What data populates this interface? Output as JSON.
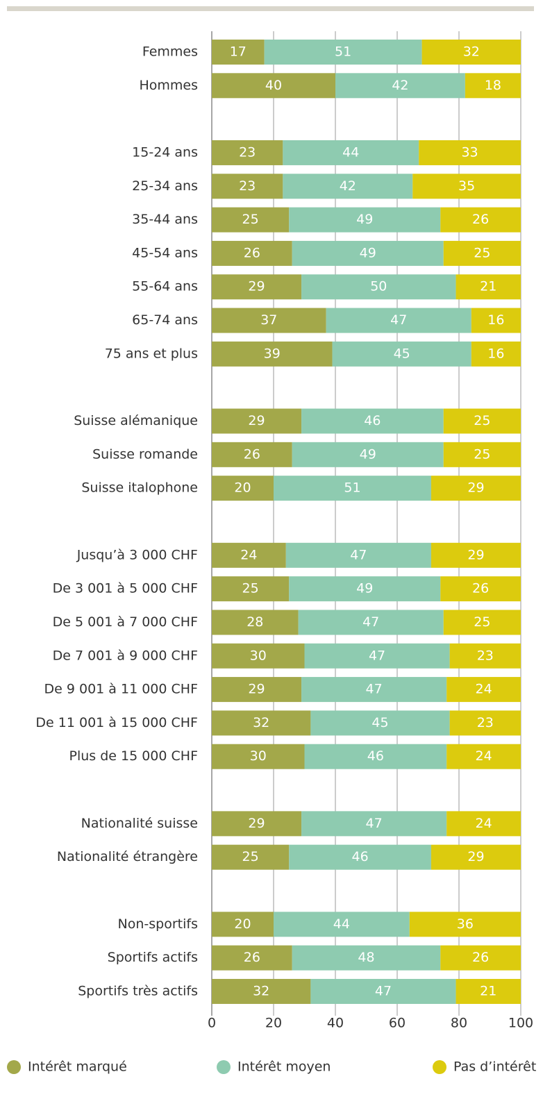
{
  "chart_data": {
    "type": "stacked-bar-horizontal",
    "categories": [
      "Femmes",
      "Hommes",
      null,
      "15-24 ans",
      "25-34 ans",
      "35-44 ans",
      "45-54 ans",
      "55-64 ans",
      "65-74 ans",
      "75 ans et plus",
      null,
      "Suisse alémanique",
      "Suisse romande",
      "Suisse italophone",
      null,
      "Jusqu’à 3 000 CHF",
      "De 3 001 à 5 000 CHF",
      "De 5 001 à 7 000 CHF",
      "De 7 001 à 9 000 CHF",
      "De 9 001 à 11 000 CHF",
      "De 11 001 à 15 000 CHF",
      "Plus de 15 000 CHF",
      null,
      "Nationalité suisse",
      "Nationalité étrangère",
      null,
      "Non-sportifs",
      "Sportifs actifs",
      "Sportifs très actifs"
    ],
    "series": [
      {
        "name": "Intérêt marqué",
        "color": "#a3a84a",
        "values": [
          17,
          40,
          null,
          23,
          23,
          25,
          26,
          29,
          37,
          39,
          null,
          29,
          26,
          20,
          null,
          24,
          25,
          28,
          30,
          29,
          32,
          30,
          null,
          29,
          25,
          null,
          20,
          26,
          32
        ]
      },
      {
        "name": "Intérêt moyen",
        "color": "#8ecbb0",
        "values": [
          51,
          42,
          null,
          44,
          42,
          49,
          49,
          50,
          47,
          45,
          null,
          46,
          49,
          51,
          null,
          47,
          49,
          47,
          47,
          47,
          45,
          46,
          null,
          47,
          46,
          null,
          44,
          48,
          47
        ]
      },
      {
        "name": "Pas d’intérêt",
        "color": "#dccb0e",
        "values": [
          32,
          18,
          null,
          33,
          35,
          26,
          25,
          21,
          16,
          16,
          null,
          25,
          25,
          29,
          null,
          29,
          26,
          25,
          23,
          24,
          23,
          24,
          null,
          24,
          29,
          null,
          36,
          26,
          21
        ]
      }
    ],
    "xlim": [
      0,
      100
    ],
    "xticks": [
      0,
      20,
      40,
      60,
      80,
      100
    ],
    "grid": true,
    "legend": "bottom"
  }
}
